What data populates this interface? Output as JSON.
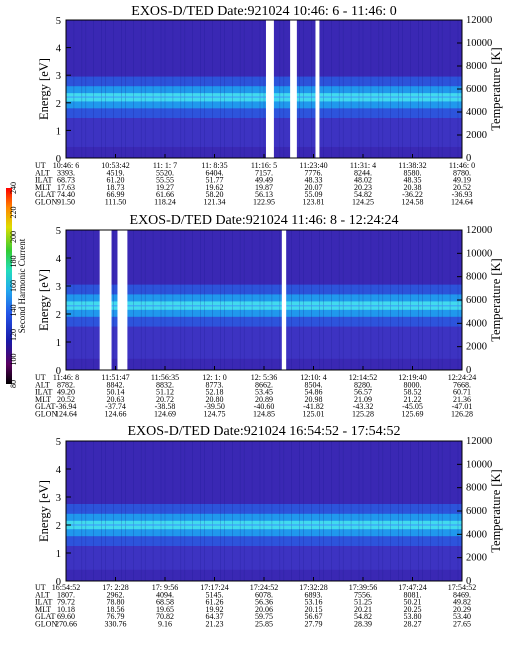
{
  "chart_data": [
    {
      "type": "heatmap",
      "title": "EXOS-D/TED   Date:921024  10:46: 6 - 11:46: 0",
      "ylabel": "Energy [eV]",
      "y2label": "Temperature [K]",
      "ylim": [
        0,
        5
      ],
      "y2lim": [
        0,
        12000
      ],
      "yticks": [
        "0",
        "1",
        "2",
        "3",
        "4",
        "5"
      ],
      "y2ticks": [
        "0",
        "2000",
        "4000",
        "6000",
        "8000",
        "10000",
        "12000"
      ],
      "band_center_ev": 2.2,
      "temperature_curve_k": 5300,
      "data_gaps_fraction": [
        [
          0.505,
          0.525
        ],
        [
          0.566,
          0.583
        ],
        [
          0.63,
          0.64
        ]
      ],
      "table": {
        "rows": [
          "UT",
          "ALT",
          "ILAT",
          "MLT",
          "GLAT",
          "GLON"
        ],
        "columns": [
          [
            "10:46: 6",
            "3393.",
            "68.73",
            "17.63",
            "74.40",
            "91.50"
          ],
          [
            "10:53:42",
            "4519.",
            "61.20",
            "18.73",
            "66.99",
            "111.50"
          ],
          [
            "11: 1: 7",
            "5520.",
            "55.55",
            "19.27",
            "61.66",
            "118.24"
          ],
          [
            "11: 8:35",
            "6404.",
            "51.77",
            "19.62",
            "58.20",
            "121.34"
          ],
          [
            "11:16: 5",
            "7157.",
            "49.49",
            "19.87",
            "56.13",
            "122.95"
          ],
          [
            "11:23:40",
            "7776.",
            "48.33",
            "20.07",
            "55.09",
            "123.81"
          ],
          [
            "11:31: 4",
            "8244.",
            "48.02",
            "20.23",
            "54.82",
            "124.25"
          ],
          [
            "11:38:32",
            "8580.",
            "48.35",
            "20.38",
            "-36.22",
            "124.58"
          ],
          [
            "11:46: 0",
            "8780.",
            "49.19",
            "20.52",
            "-36.93",
            "124.64"
          ]
        ]
      }
    },
    {
      "type": "heatmap",
      "title": "EXOS-D/TED   Date:921024  11:46: 8 - 12:24:24",
      "ylabel": "Energy [eV]",
      "y2label": "Temperature [K]",
      "ylim": [
        0,
        5
      ],
      "y2lim": [
        0,
        12000
      ],
      "yticks": [
        "0",
        "1",
        "2",
        "3",
        "4",
        "5"
      ],
      "y2ticks": [
        "0",
        "2000",
        "4000",
        "6000",
        "8000",
        "10000",
        "12000"
      ],
      "band_center_ev": 2.3,
      "temperature_curve_k": 5500,
      "data_gaps_fraction": [
        [
          0.085,
          0.115
        ],
        [
          0.13,
          0.155
        ],
        [
          0.545,
          0.556
        ]
      ],
      "colorbar": {
        "label": "Second Harmonic Current",
        "ticks": [
          "80",
          "100",
          "120",
          "140",
          "160",
          "180",
          "200",
          "220",
          "240"
        ],
        "colors": [
          "#000000",
          "#5a0060",
          "#1a1aa8",
          "#2255e8",
          "#22aaee",
          "#22ddbb",
          "#33cc33",
          "#dddd00",
          "#ff8800",
          "#ff0000"
        ]
      },
      "table": {
        "rows": [
          "UT",
          "ALT",
          "ILAT",
          "MLT",
          "GLAT",
          "GLON"
        ],
        "columns": [
          [
            "11:46: 8",
            "8782.",
            "49.20",
            "20.52",
            "-36.94",
            "124.64"
          ],
          [
            "11:51:47",
            "8842.",
            "50.14",
            "20.63",
            "-37.74",
            "124.66"
          ],
          [
            "11:56:35",
            "8832.",
            "51.12",
            "20.72",
            "-38.58",
            "124.69"
          ],
          [
            "12: 1: 0",
            "8773.",
            "52.18",
            "20.80",
            "-39.50",
            "124.75"
          ],
          [
            "12: 5:36",
            "8662.",
            "53.45",
            "20.89",
            "-40.60",
            "124.85"
          ],
          [
            "12:10: 4",
            "8504.",
            "54.86",
            "20.98",
            "-41.82",
            "125.01"
          ],
          [
            "12:14:52",
            "8280.",
            "56.57",
            "21.09",
            "-43.32",
            "125.28"
          ],
          [
            "12:19:40",
            "8000.",
            "58.52",
            "21.22",
            "-45.05",
            "125.69"
          ],
          [
            "12:24:24",
            "7668.",
            "60.71",
            "21.36",
            "-47.01",
            "126.28"
          ]
        ]
      }
    },
    {
      "type": "heatmap",
      "title": "EXOS-D/TED   Date:921024  16:54:52 - 17:54:52",
      "ylabel": "Energy [eV]",
      "y2label": "Temperature [K]",
      "ylim": [
        0,
        5
      ],
      "y2lim": [
        0,
        12000
      ],
      "yticks": [
        "0",
        "1",
        "2",
        "3",
        "4",
        "5"
      ],
      "y2ticks": [
        "0",
        "2000",
        "4000",
        "6000",
        "8000",
        "10000",
        "12000"
      ],
      "band_center_ev": 2.0,
      "temperature_curve_k": 4800,
      "data_gaps_fraction": [],
      "table": {
        "rows": [
          "UT",
          "ALT",
          "ILAT",
          "MLT",
          "GLAT",
          "GLON"
        ],
        "columns": [
          [
            "16:54:52",
            "1807.",
            "79.72",
            "10.18",
            "69.60",
            "270.66"
          ],
          [
            "17: 2:28",
            "2962.",
            "78.80",
            "18.56",
            "76.79",
            "330.76"
          ],
          [
            "17: 9:56",
            "4094.",
            "68.58",
            "19.65",
            "70.82",
            "9.16"
          ],
          [
            "17:17:24",
            "5145.",
            "61.26",
            "19.92",
            "64.37",
            "21.23"
          ],
          [
            "17:24:52",
            "6078.",
            "56.36",
            "20.06",
            "59.75",
            "25.85"
          ],
          [
            "17:32:28",
            "6893.",
            "53.16",
            "20.15",
            "56.67",
            "27.79"
          ],
          [
            "17:39:56",
            "7556.",
            "51.25",
            "20.21",
            "54.82",
            "28.39"
          ],
          [
            "17:47:24",
            "8081.",
            "50.21",
            "20.25",
            "53.80",
            "28.27"
          ],
          [
            "17:54:52",
            "8469.",
            "49.82",
            "20.29",
            "53.40",
            "27.65"
          ]
        ]
      }
    }
  ]
}
